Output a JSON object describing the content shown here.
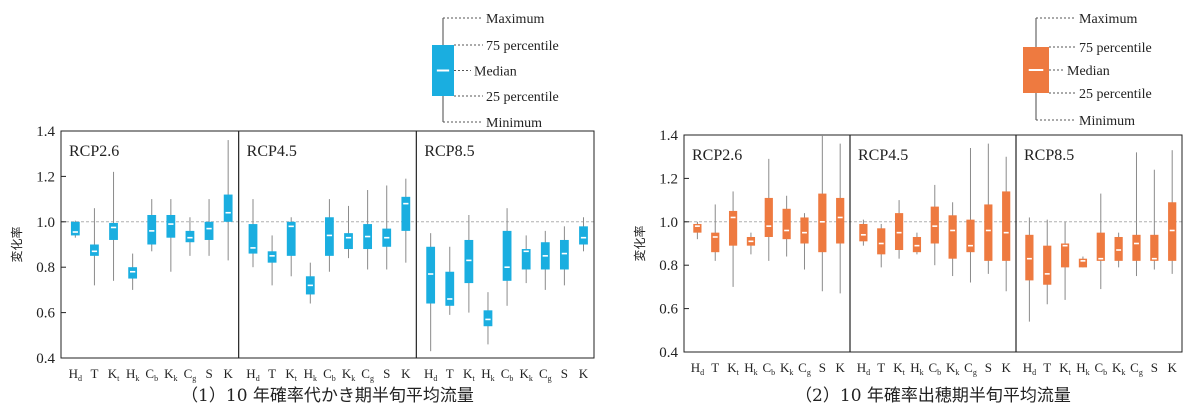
{
  "colors": {
    "left": "#1aaee0",
    "right": "#ee7a40",
    "ref_line": "#b0b0b0",
    "axis": "#222222"
  },
  "legend_labels": [
    "Maximum",
    "75 percentile",
    "Median",
    "25 percentile",
    "Minimum"
  ],
  "chart_data": [
    {
      "type": "box",
      "caption": "（1）10 年確率代かき期半旬平均流量",
      "ylabel": "変化率",
      "ylim": [
        0.4,
        1.4
      ],
      "yticks": [
        "0.4",
        "0.6",
        "0.8",
        "1.0",
        "1.2",
        "1.4"
      ],
      "reference_line": 1.0,
      "categories": [
        "Hd",
        "T",
        "Kt",
        "Hk",
        "Cb",
        "Kk",
        "Cg",
        "S",
        "K"
      ],
      "groups": [
        {
          "name": "RCP2.6",
          "boxes": [
            {
              "min": 0.93,
              "q1": 0.94,
              "median": 0.955,
              "q3": 1.0,
              "max": 1.005
            },
            {
              "min": 0.72,
              "q1": 0.85,
              "median": 0.87,
              "q3": 0.9,
              "max": 1.06
            },
            {
              "min": 0.74,
              "q1": 0.92,
              "median": 0.975,
              "q3": 0.995,
              "max": 1.22
            },
            {
              "min": 0.7,
              "q1": 0.75,
              "median": 0.78,
              "q3": 0.8,
              "max": 0.86
            },
            {
              "min": 0.87,
              "q1": 0.9,
              "median": 0.96,
              "q3": 1.03,
              "max": 1.1
            },
            {
              "min": 0.78,
              "q1": 0.93,
              "median": 0.99,
              "q3": 1.03,
              "max": 1.1
            },
            {
              "min": 0.85,
              "q1": 0.91,
              "median": 0.93,
              "q3": 0.96,
              "max": 1.02
            },
            {
              "min": 0.85,
              "q1": 0.92,
              "median": 0.97,
              "q3": 1.0,
              "max": 1.1
            },
            {
              "min": 0.83,
              "q1": 1.0,
              "median": 1.04,
              "q3": 1.12,
              "max": 1.36
            }
          ]
        },
        {
          "name": "RCP4.5",
          "boxes": [
            {
              "min": 0.8,
              "q1": 0.86,
              "median": 0.885,
              "q3": 0.99,
              "max": 1.1
            },
            {
              "min": 0.72,
              "q1": 0.82,
              "median": 0.85,
              "q3": 0.87,
              "max": 0.94
            },
            {
              "min": 0.76,
              "q1": 0.85,
              "median": 0.98,
              "q3": 1.0,
              "max": 1.02
            },
            {
              "min": 0.64,
              "q1": 0.68,
              "median": 0.72,
              "q3": 0.76,
              "max": 0.82
            },
            {
              "min": 0.78,
              "q1": 0.85,
              "median": 0.94,
              "q3": 1.02,
              "max": 1.1
            },
            {
              "min": 0.84,
              "q1": 0.88,
              "median": 0.93,
              "q3": 0.95,
              "max": 1.07
            },
            {
              "min": 0.79,
              "q1": 0.88,
              "median": 0.935,
              "q3": 0.99,
              "max": 1.14
            },
            {
              "min": 0.79,
              "q1": 0.89,
              "median": 0.93,
              "q3": 0.97,
              "max": 1.16
            },
            {
              "min": 0.82,
              "q1": 0.96,
              "median": 1.08,
              "q3": 1.11,
              "max": 1.19
            }
          ]
        },
        {
          "name": "RCP8.5",
          "boxes": [
            {
              "min": 0.43,
              "q1": 0.64,
              "median": 0.77,
              "q3": 0.89,
              "max": 0.95
            },
            {
              "min": 0.59,
              "q1": 0.63,
              "median": 0.66,
              "q3": 0.78,
              "max": 0.89
            },
            {
              "min": 0.6,
              "q1": 0.73,
              "median": 0.83,
              "q3": 0.92,
              "max": 1.03
            },
            {
              "min": 0.46,
              "q1": 0.54,
              "median": 0.57,
              "q3": 0.61,
              "max": 0.69
            },
            {
              "min": 0.63,
              "q1": 0.74,
              "median": 0.8,
              "q3": 0.96,
              "max": 1.06
            },
            {
              "min": 0.73,
              "q1": 0.79,
              "median": 0.87,
              "q3": 0.88,
              "max": 0.94
            },
            {
              "min": 0.7,
              "q1": 0.79,
              "median": 0.85,
              "q3": 0.91,
              "max": 0.96
            },
            {
              "min": 0.72,
              "q1": 0.79,
              "median": 0.86,
              "q3": 0.92,
              "max": 0.98
            },
            {
              "min": 0.87,
              "q1": 0.9,
              "median": 0.93,
              "q3": 0.98,
              "max": 1.02
            }
          ]
        }
      ]
    },
    {
      "type": "box",
      "caption": "（2）10 年確率出穂期半旬平均流量",
      "ylabel": "変化率",
      "ylim": [
        0.4,
        1.4
      ],
      "yticks": [
        "0.4",
        "0.6",
        "0.8",
        "1.0",
        "1.2",
        "1.4"
      ],
      "reference_line": 1.0,
      "categories": [
        "Hd",
        "T",
        "Kt",
        "Hk",
        "Cb",
        "Kk",
        "Cg",
        "S",
        "K"
      ],
      "groups": [
        {
          "name": "RCP2.6",
          "boxes": [
            {
              "min": 0.92,
              "q1": 0.95,
              "median": 0.98,
              "q3": 0.99,
              "max": 1.0
            },
            {
              "min": 0.82,
              "q1": 0.86,
              "median": 0.93,
              "q3": 0.95,
              "max": 1.08
            },
            {
              "min": 0.7,
              "q1": 0.89,
              "median": 1.02,
              "q3": 1.05,
              "max": 1.14
            },
            {
              "min": 0.85,
              "q1": 0.89,
              "median": 0.91,
              "q3": 0.93,
              "max": 0.95
            },
            {
              "min": 0.82,
              "q1": 0.93,
              "median": 0.98,
              "q3": 1.11,
              "max": 1.29
            },
            {
              "min": 0.84,
              "q1": 0.92,
              "median": 0.96,
              "q3": 1.06,
              "max": 1.12
            },
            {
              "min": 0.78,
              "q1": 0.9,
              "median": 0.95,
              "q3": 1.02,
              "max": 1.04
            },
            {
              "min": 0.68,
              "q1": 0.86,
              "median": 1.0,
              "q3": 1.13,
              "max": 1.4
            },
            {
              "min": 0.67,
              "q1": 0.9,
              "median": 1.02,
              "q3": 1.11,
              "max": 1.36
            }
          ]
        },
        {
          "name": "RCP4.5",
          "boxes": [
            {
              "min": 0.89,
              "q1": 0.91,
              "median": 0.94,
              "q3": 0.99,
              "max": 1.01
            },
            {
              "min": 0.79,
              "q1": 0.85,
              "median": 0.9,
              "q3": 0.97,
              "max": 0.99
            },
            {
              "min": 0.83,
              "q1": 0.87,
              "median": 0.95,
              "q3": 1.04,
              "max": 1.1
            },
            {
              "min": 0.85,
              "q1": 0.86,
              "median": 0.89,
              "q3": 0.93,
              "max": 0.95
            },
            {
              "min": 0.8,
              "q1": 0.9,
              "median": 0.98,
              "q3": 1.07,
              "max": 1.17
            },
            {
              "min": 0.75,
              "q1": 0.83,
              "median": 0.96,
              "q3": 1.03,
              "max": 1.09
            },
            {
              "min": 0.72,
              "q1": 0.86,
              "median": 0.89,
              "q3": 1.01,
              "max": 1.34
            },
            {
              "min": 0.76,
              "q1": 0.82,
              "median": 0.96,
              "q3": 1.08,
              "max": 1.36
            },
            {
              "min": 0.68,
              "q1": 0.82,
              "median": 0.95,
              "q3": 1.14,
              "max": 1.3
            }
          ]
        },
        {
          "name": "RCP8.5",
          "boxes": [
            {
              "min": 0.54,
              "q1": 0.73,
              "median": 0.83,
              "q3": 0.94,
              "max": 1.02
            },
            {
              "min": 0.62,
              "q1": 0.71,
              "median": 0.76,
              "q3": 0.89,
              "max": 1.01
            },
            {
              "min": 0.64,
              "q1": 0.79,
              "median": 0.89,
              "q3": 0.9,
              "max": 1.0
            },
            {
              "min": 0.79,
              "q1": 0.79,
              "median": 0.82,
              "q3": 0.83,
              "max": 0.84
            },
            {
              "min": 0.69,
              "q1": 0.82,
              "median": 0.83,
              "q3": 0.95,
              "max": 1.13
            },
            {
              "min": 0.79,
              "q1": 0.82,
              "median": 0.87,
              "q3": 0.93,
              "max": 0.95
            },
            {
              "min": 0.75,
              "q1": 0.82,
              "median": 0.9,
              "q3": 0.94,
              "max": 1.32
            },
            {
              "min": 0.78,
              "q1": 0.82,
              "median": 0.83,
              "q3": 0.94,
              "max": 1.24
            },
            {
              "min": 0.76,
              "q1": 0.82,
              "median": 0.96,
              "q3": 1.09,
              "max": 1.33
            }
          ]
        }
      ]
    }
  ]
}
